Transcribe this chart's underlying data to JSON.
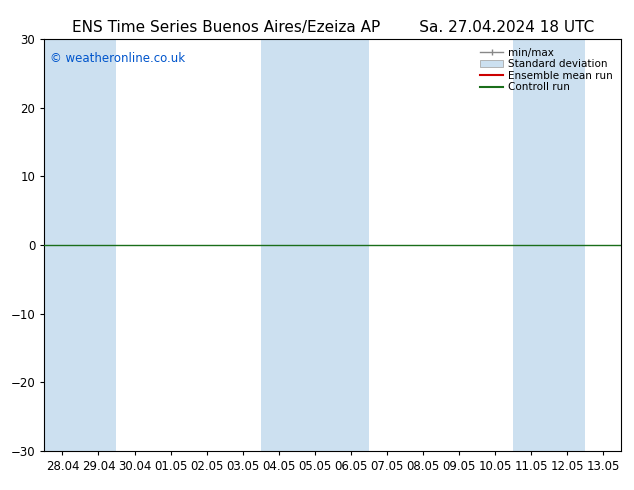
{
  "title_left": "ENS Time Series Buenos Aires/Ezeiza AP",
  "title_right": "Sa. 27.04.2024 18 UTC",
  "watermark": "© weatheronline.co.uk",
  "ylim": [
    -30,
    30
  ],
  "yticks": [
    -30,
    -20,
    -10,
    0,
    10,
    20,
    30
  ],
  "x_labels": [
    "28.04",
    "29.04",
    "30.04",
    "01.05",
    "02.05",
    "03.05",
    "04.05",
    "05.05",
    "06.05",
    "07.05",
    "08.05",
    "09.05",
    "10.05",
    "11.05",
    "12.05",
    "13.05"
  ],
  "shaded_columns": [
    0,
    1,
    6,
    7,
    8,
    13,
    14
  ],
  "shade_color": "#cce0f0",
  "background_color": "#ffffff",
  "zero_line_color": "#1a6e1a",
  "ensemble_color": "#cc0000",
  "control_color": "#1a6e1a",
  "legend_entries": [
    {
      "label": "min/max"
    },
    {
      "label": "Standard deviation"
    },
    {
      "label": "Ensemble mean run"
    },
    {
      "label": "Controll run"
    }
  ],
  "title_fontsize": 11,
  "watermark_color": "#0055cc",
  "tick_label_fontsize": 8.5,
  "font_family": "DejaVu Sans"
}
